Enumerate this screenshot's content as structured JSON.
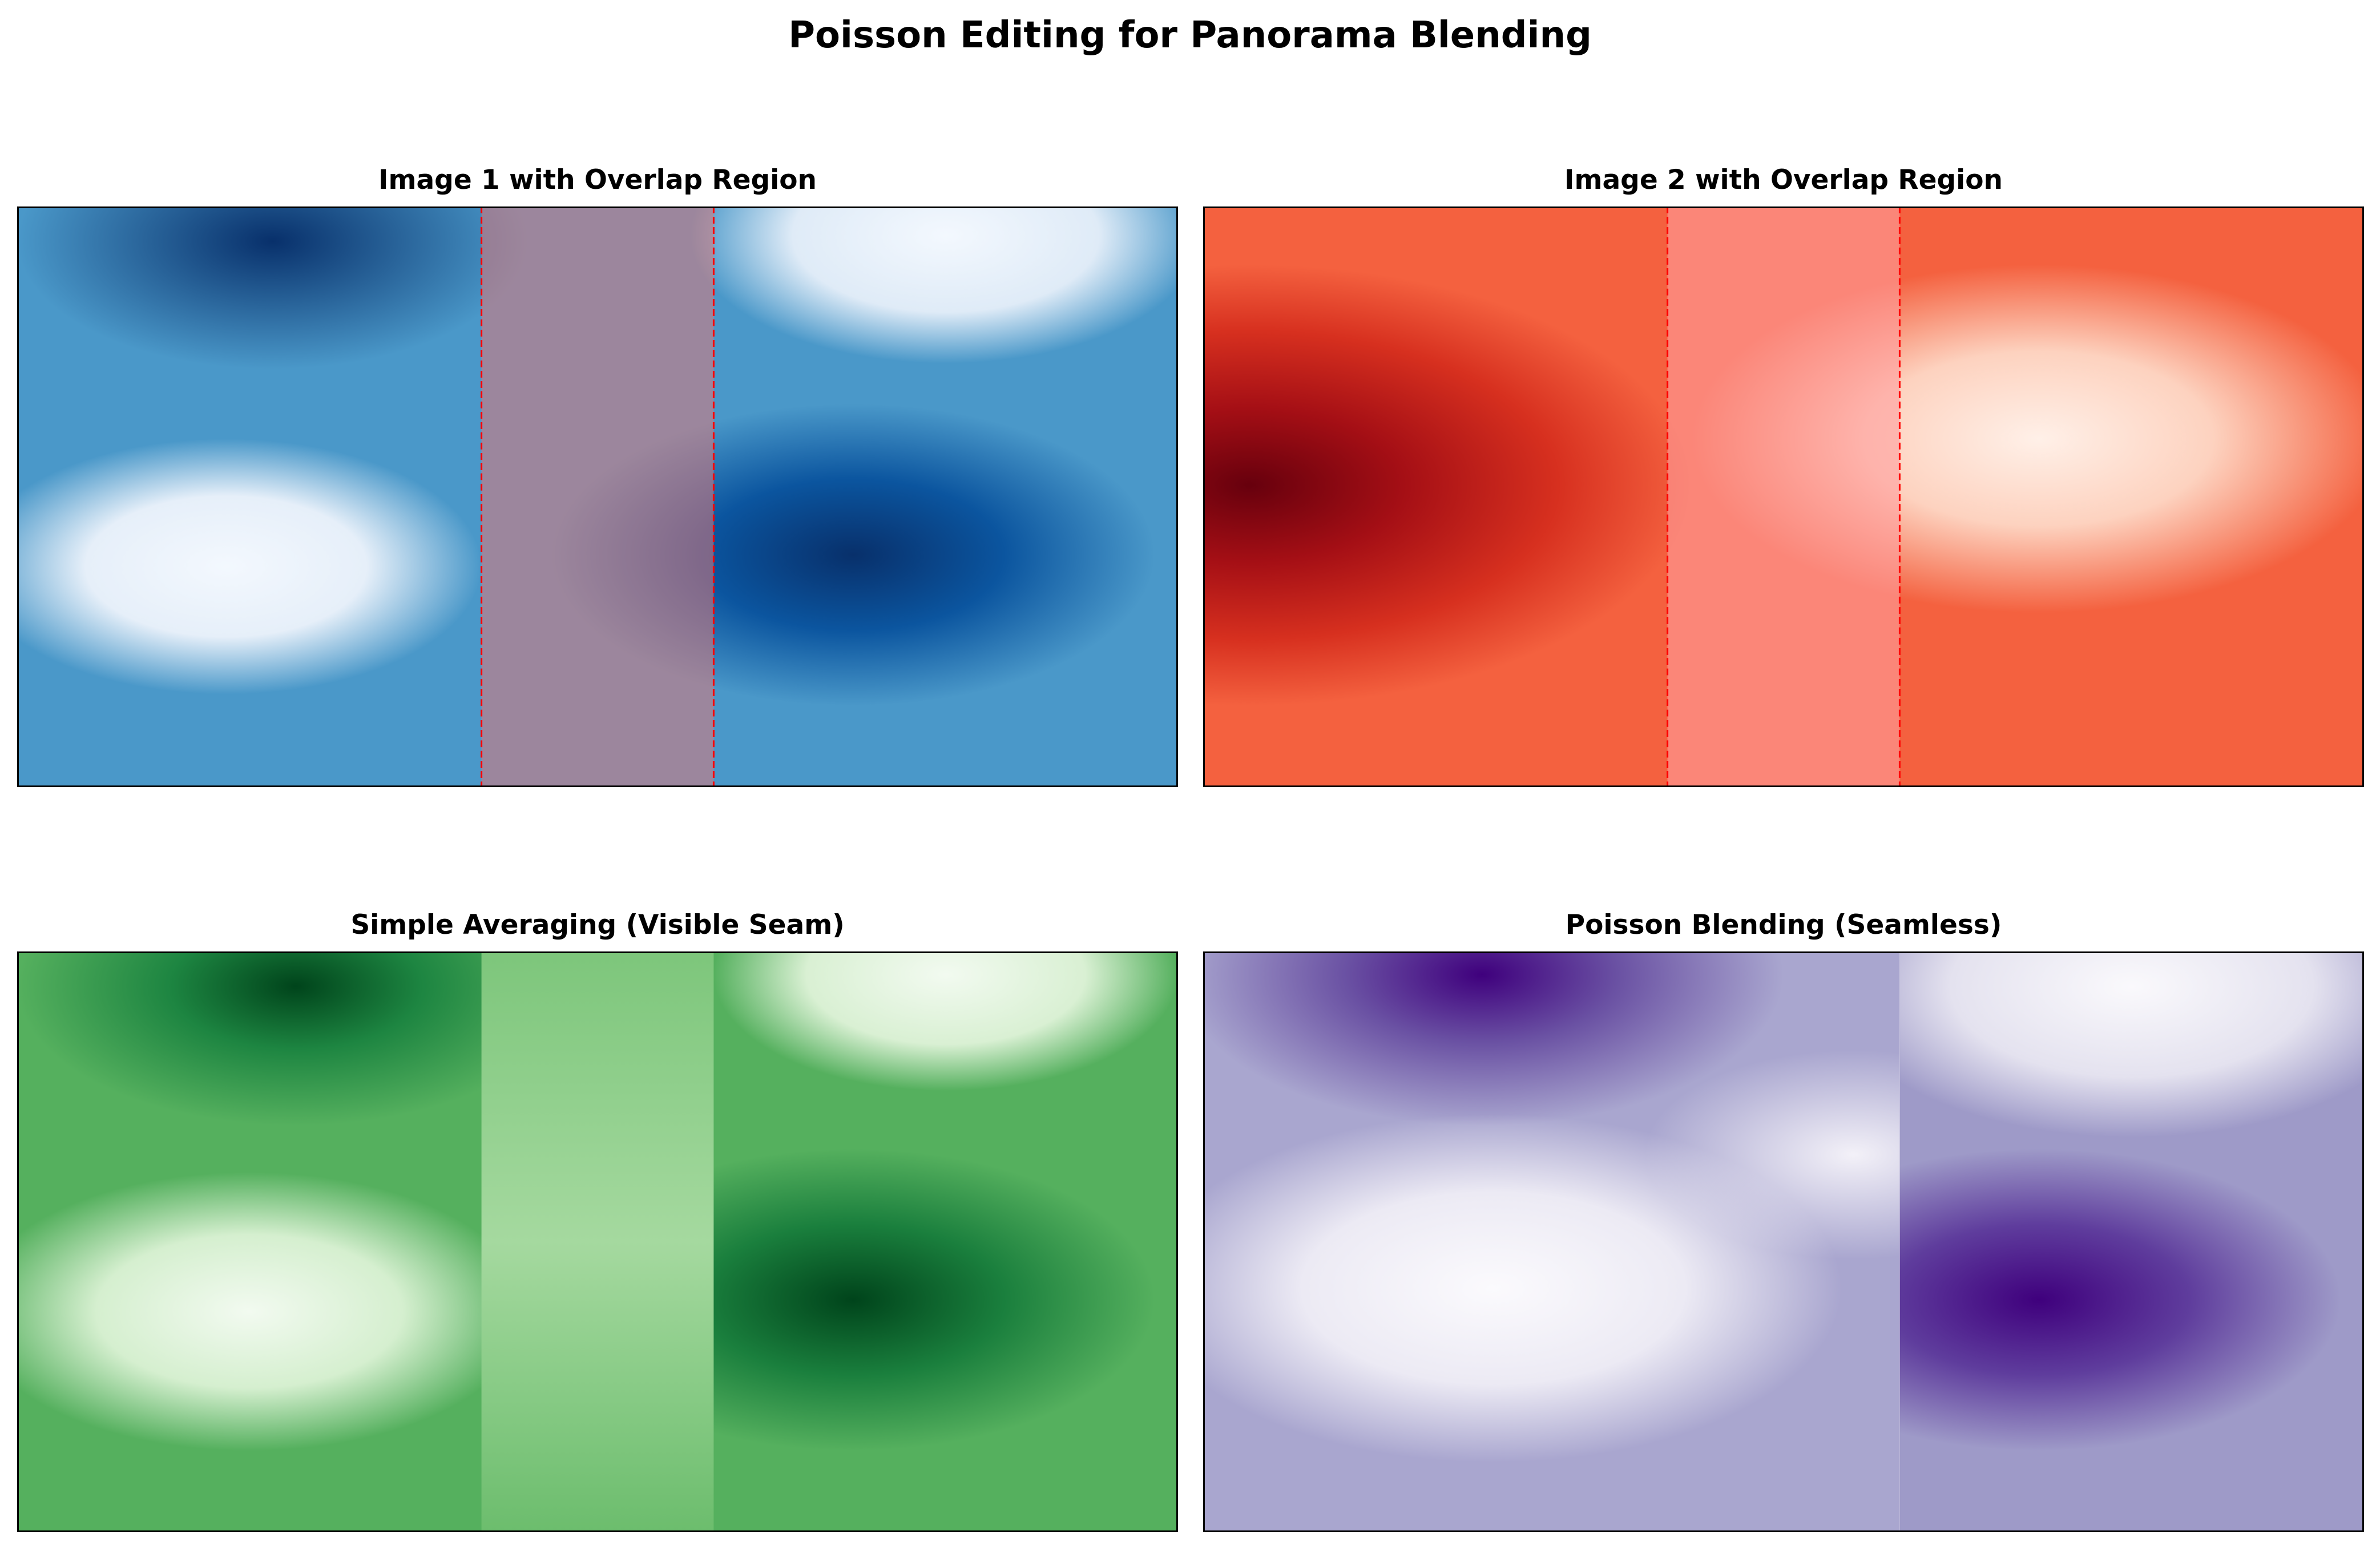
{
  "figure": {
    "title": "Poisson Editing for Panorama Blending"
  },
  "chart_data": [
    {
      "type": "heatmap",
      "title": "Image 1 with Overlap Region",
      "colormap": "Blues",
      "image": "image1",
      "overlap": {
        "x_start": 0.4,
        "x_end": 0.6,
        "color": "#ff0000",
        "style": "dashed",
        "tint": "#e07878"
      },
      "ticks": "none",
      "grid": false
    },
    {
      "type": "heatmap",
      "title": "Image 2 with Overlap Region",
      "colormap": "Reds",
      "image": "image2",
      "overlap": {
        "x_start": 0.4,
        "x_end": 0.6,
        "color": "#ff0000",
        "style": "dashed",
        "tint": "#ff9f9f"
      },
      "ticks": "none",
      "grid": false
    },
    {
      "type": "heatmap",
      "title": "Simple Averaging (Visible Seam)",
      "colormap": "Greens",
      "image": "average",
      "seam": {
        "x_start": 0.4,
        "x_end": 0.6
      },
      "ticks": "none",
      "grid": false
    },
    {
      "type": "heatmap",
      "title": "Poisson Blending (Seamless)",
      "colormap": "Purples",
      "image": "poisson",
      "seam": {
        "x_start": 0.6
      },
      "ticks": "none",
      "grid": false
    }
  ]
}
